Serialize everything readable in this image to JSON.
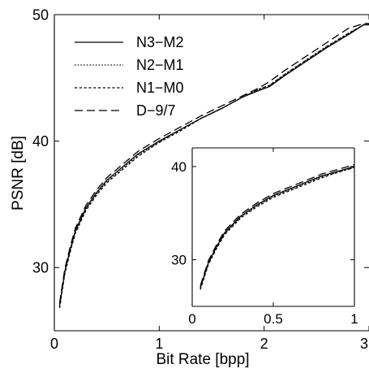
{
  "chart_data": [
    {
      "type": "line",
      "xlabel": "Bit Rate [bpp]",
      "ylabel": "PSNR [dB]",
      "xlim": [
        0,
        3
      ],
      "ylim": [
        25,
        50
      ],
      "xticks": [
        0,
        1,
        2,
        3
      ],
      "xtick_labels": [
        "0",
        "1",
        "2",
        "3"
      ],
      "yticks": [
        30,
        40,
        50
      ],
      "ytick_labels": [
        "30",
        "40",
        "50"
      ],
      "grid": false,
      "legend_position": "top-left",
      "series": [
        {
          "name": "N3−M2",
          "dash": "solid",
          "x": [
            0.05,
            0.1,
            0.15,
            0.2,
            0.3,
            0.4,
            0.5,
            0.6,
            0.8,
            1.0,
            1.2,
            1.4,
            1.6,
            1.8,
            1.95,
            2.05,
            2.2,
            2.4,
            2.6,
            2.8,
            2.95,
            3.0
          ],
          "y": [
            27.0,
            29.7,
            31.4,
            32.9,
            34.7,
            35.9,
            36.9,
            37.6,
            39.0,
            40.0,
            40.9,
            41.8,
            42.6,
            43.5,
            44.0,
            44.3,
            45.2,
            46.3,
            47.4,
            48.4,
            49.2,
            49.2
          ]
        },
        {
          "name": "N2−M1",
          "dash": "dotted",
          "x": [
            0.05,
            0.1,
            0.15,
            0.2,
            0.3,
            0.4,
            0.5,
            0.6,
            0.8,
            1.0,
            1.2,
            1.4,
            1.6,
            1.8,
            1.95,
            2.05,
            2.2,
            2.4,
            2.6,
            2.8,
            2.95,
            3.0
          ],
          "y": [
            26.9,
            29.6,
            31.3,
            32.8,
            34.6,
            35.8,
            36.8,
            37.5,
            38.9,
            39.9,
            40.9,
            41.8,
            42.6,
            43.5,
            44.1,
            44.4,
            45.3,
            46.4,
            47.5,
            48.5,
            49.2,
            49.2
          ]
        },
        {
          "name": "N1−M0",
          "dash": "short-dash",
          "x": [
            0.05,
            0.1,
            0.15,
            0.2,
            0.3,
            0.4,
            0.5,
            0.6,
            0.8,
            1.0,
            1.2,
            1.4,
            1.6,
            1.8,
            1.95,
            2.05,
            2.2,
            2.4,
            2.6,
            2.8,
            2.95,
            3.0
          ],
          "y": [
            26.8,
            29.5,
            31.2,
            32.7,
            34.5,
            35.7,
            36.7,
            37.4,
            38.8,
            39.9,
            40.8,
            41.8,
            42.6,
            43.5,
            44.1,
            44.4,
            45.3,
            46.4,
            47.5,
            48.5,
            49.2,
            49.2
          ]
        },
        {
          "name": "D−9/7",
          "dash": "long-dash",
          "x": [
            0.05,
            0.1,
            0.15,
            0.2,
            0.3,
            0.4,
            0.5,
            0.6,
            0.8,
            1.0,
            1.2,
            1.4,
            1.6,
            1.8,
            1.95,
            2.05,
            2.2,
            2.4,
            2.6,
            2.8,
            2.95,
            3.0
          ],
          "y": [
            27.2,
            29.9,
            31.6,
            33.1,
            34.9,
            36.1,
            37.1,
            37.8,
            39.2,
            40.2,
            41.1,
            42.0,
            42.8,
            43.6,
            44.2,
            44.7,
            45.6,
            46.7,
            47.8,
            48.9,
            49.3,
            49.3
          ]
        }
      ]
    },
    {
      "type": "line",
      "inset": true,
      "xlim": [
        0,
        1
      ],
      "ylim": [
        25,
        42
      ],
      "xticks": [
        0,
        0.5,
        1
      ],
      "xtick_labels": [
        "0",
        "0.5",
        "1"
      ],
      "yticks": [
        30,
        40
      ],
      "ytick_labels": [
        "30",
        "40"
      ],
      "grid": false,
      "series": [
        {
          "dash": "solid",
          "x": [
            0.05,
            0.1,
            0.15,
            0.2,
            0.3,
            0.4,
            0.5,
            0.6,
            0.7,
            0.8,
            0.9,
            1.0
          ],
          "y": [
            27.0,
            29.7,
            31.4,
            32.9,
            34.7,
            35.9,
            36.9,
            37.6,
            38.3,
            39.0,
            39.5,
            40.0
          ]
        },
        {
          "dash": "dotted",
          "x": [
            0.05,
            0.1,
            0.15,
            0.2,
            0.3,
            0.4,
            0.5,
            0.6,
            0.7,
            0.8,
            0.9,
            1.0
          ],
          "y": [
            26.9,
            29.6,
            31.3,
            32.8,
            34.6,
            35.8,
            36.8,
            37.5,
            38.2,
            38.9,
            39.4,
            39.9
          ]
        },
        {
          "dash": "short-dash",
          "x": [
            0.05,
            0.1,
            0.15,
            0.2,
            0.3,
            0.4,
            0.5,
            0.6,
            0.7,
            0.8,
            0.9,
            1.0
          ],
          "y": [
            26.8,
            29.5,
            31.2,
            32.7,
            34.5,
            35.7,
            36.7,
            37.4,
            38.1,
            38.8,
            39.4,
            39.9
          ]
        },
        {
          "dash": "long-dash",
          "x": [
            0.05,
            0.1,
            0.15,
            0.2,
            0.3,
            0.4,
            0.5,
            0.6,
            0.7,
            0.8,
            0.9,
            1.0
          ],
          "y": [
            27.2,
            29.9,
            31.6,
            33.1,
            34.9,
            36.1,
            37.1,
            37.8,
            38.5,
            39.2,
            39.7,
            40.2
          ]
        }
      ]
    }
  ]
}
